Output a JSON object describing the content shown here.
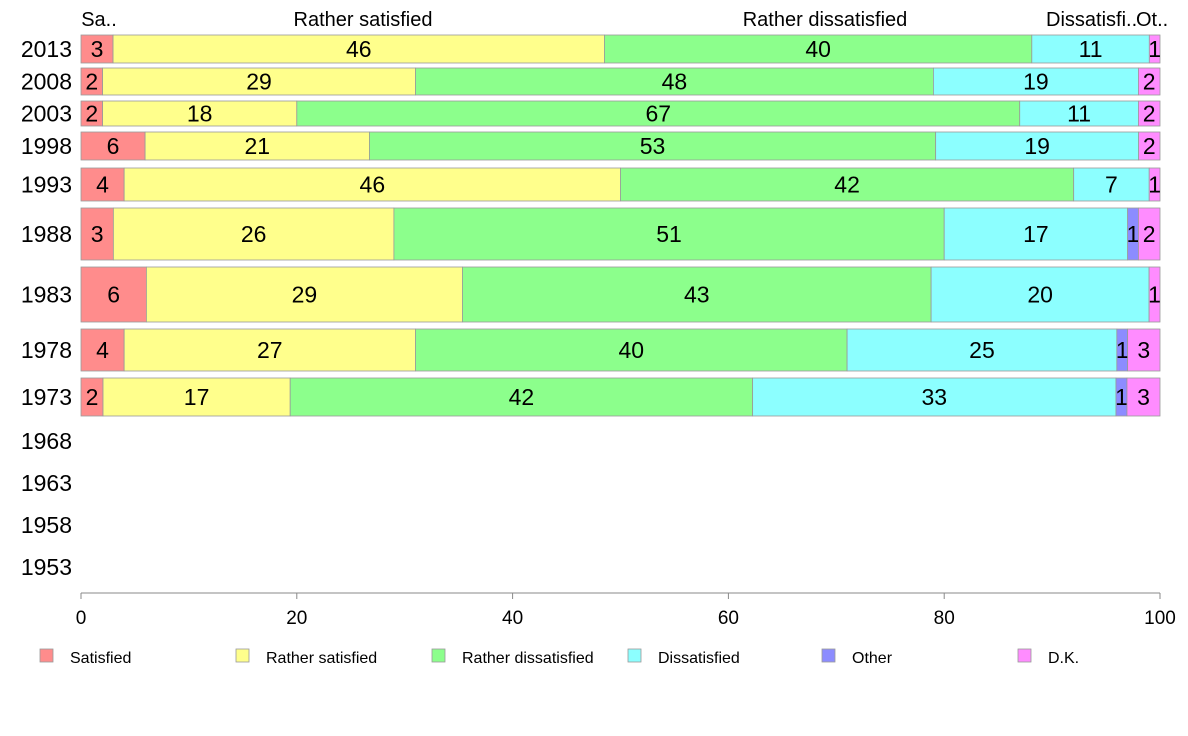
{
  "chart_data": {
    "type": "bar",
    "orientation": "horizontal",
    "stacked": true,
    "categories": [
      "2013",
      "2008",
      "2003",
      "1998",
      "1993",
      "1988",
      "1983",
      "1978",
      "1973",
      "1968",
      "1963",
      "1958",
      "1953"
    ],
    "series": [
      {
        "name": "Satisfied",
        "color": "#ff8c8c",
        "values": [
          3,
          2,
          2,
          6,
          4,
          3,
          6,
          4,
          2,
          null,
          null,
          null,
          null
        ]
      },
      {
        "name": "Rather satisfied",
        "color": "#ffff8c",
        "values": [
          46,
          29,
          18,
          21,
          46,
          26,
          29,
          27,
          17,
          null,
          null,
          null,
          null
        ]
      },
      {
        "name": "Rather dissatisfied",
        "color": "#8cff8c",
        "values": [
          40,
          48,
          67,
          53,
          42,
          51,
          43,
          40,
          42,
          null,
          null,
          null,
          null
        ]
      },
      {
        "name": "Dissatisfied",
        "color": "#8cffff",
        "values": [
          11,
          19,
          11,
          19,
          7,
          17,
          20,
          25,
          33,
          null,
          null,
          null,
          null
        ]
      },
      {
        "name": "Other",
        "color": "#8c8cff",
        "values": [
          0,
          0,
          0,
          0,
          0,
          1,
          0,
          1,
          1,
          null,
          null,
          null,
          null
        ]
      },
      {
        "name": "D.K.",
        "color": "#ff8cff",
        "values": [
          1,
          2,
          2,
          2,
          1,
          2,
          1,
          3,
          3,
          null,
          null,
          null,
          null
        ]
      }
    ],
    "top_labels": [
      "Sa..",
      "Rather satisfied",
      "Rather dissatisfied",
      "Dissatisfi..",
      "Ot.."
    ],
    "x_ticks": [
      "0",
      "20",
      "40",
      "60",
      "80",
      "100"
    ],
    "xlim": [
      0,
      100
    ],
    "legend": "bottom",
    "grid": false
  }
}
